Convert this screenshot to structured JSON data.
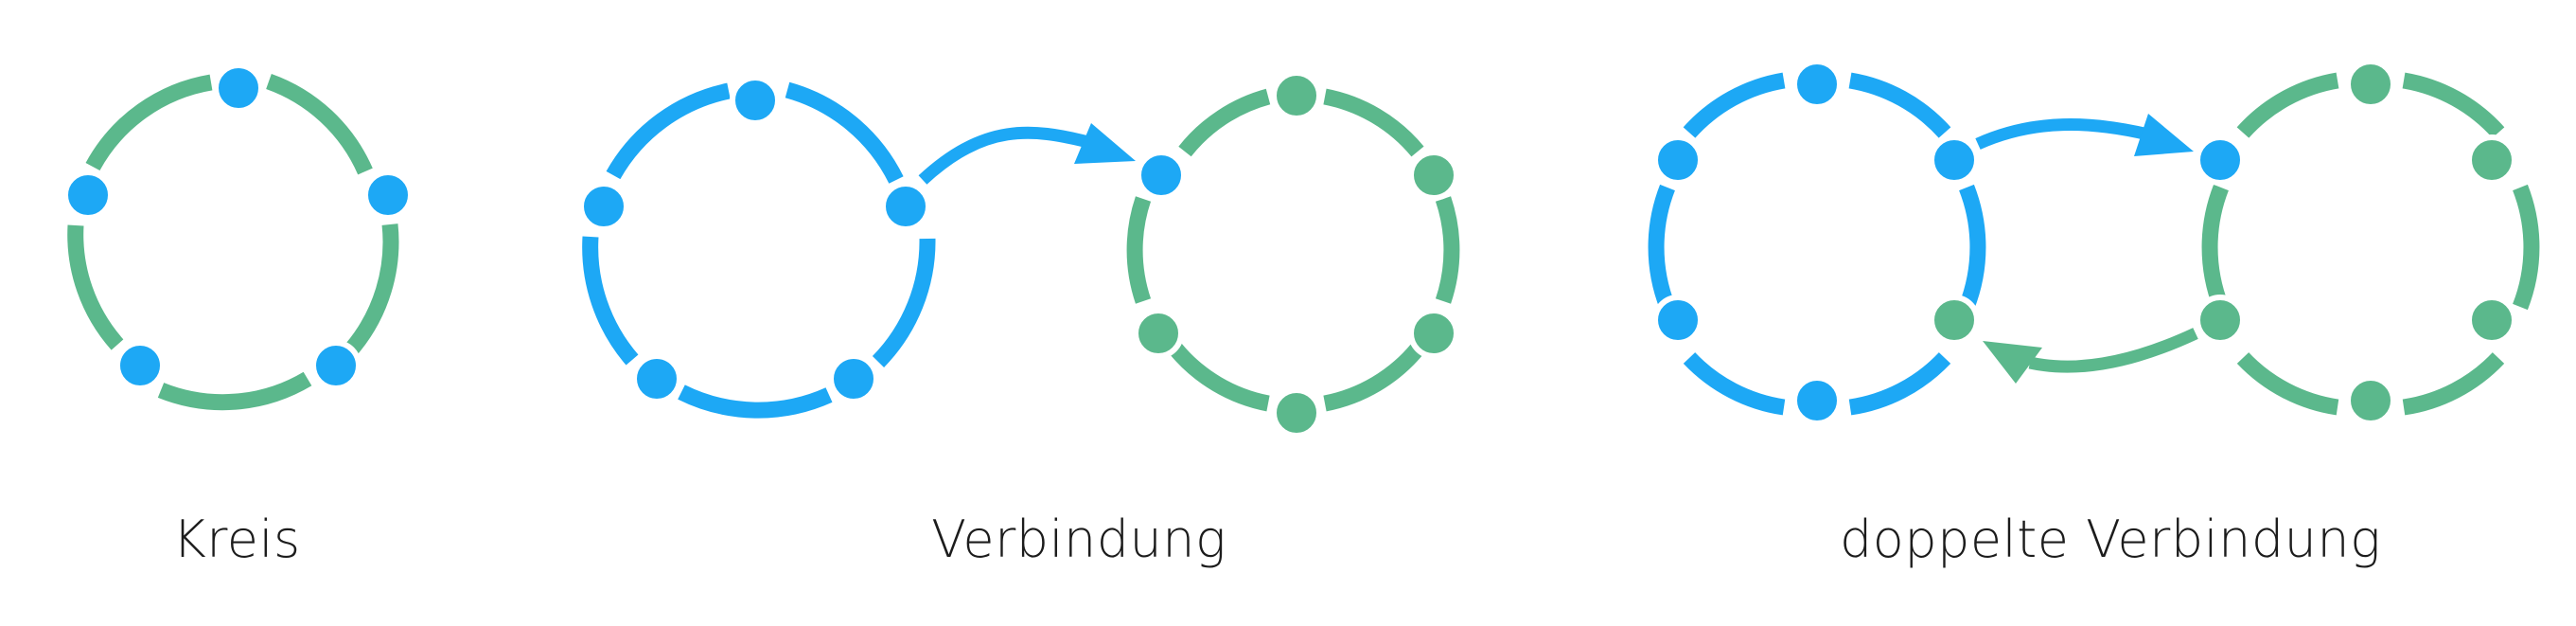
{
  "colors": {
    "blue": "#1da8f5",
    "green": "#5bb88c",
    "background": "#ffffff",
    "text": "#1c1c1c"
  },
  "captions": {
    "kreis": "Kreis",
    "verbindung": "Verbindung",
    "doppelt": "doppelte Verbindung"
  }
}
